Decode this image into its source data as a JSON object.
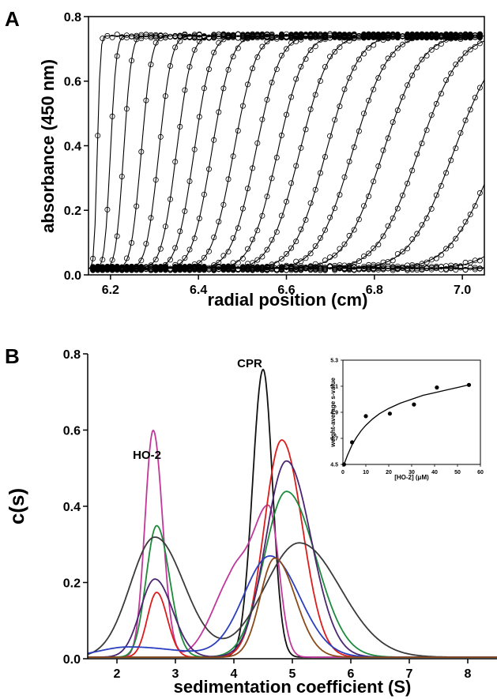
{
  "chart_data": [
    {
      "panel_label": "A",
      "type": "scatter",
      "xlabel": "radial position (cm)",
      "ylabel": "absorbance (450 nm)",
      "xlim": [
        6.15,
        7.05
      ],
      "ylim": [
        0.0,
        0.8
      ],
      "xticks": [
        "6.2",
        "6.4",
        "6.6",
        "6.8",
        "7.0"
      ],
      "yticks": [
        "0.0",
        "0.2",
        "0.4",
        "0.6",
        "0.8"
      ],
      "marker": "open-circle",
      "fit": "solid-line",
      "plateau": 0.74,
      "baseline": 0.02,
      "boundaries": [
        {
          "midpoint": 6.17,
          "width": 0.008
        },
        {
          "midpoint": 6.2,
          "width": 0.015
        },
        {
          "midpoint": 6.23,
          "width": 0.02
        },
        {
          "midpoint": 6.27,
          "width": 0.026
        },
        {
          "midpoint": 6.31,
          "width": 0.032
        },
        {
          "midpoint": 6.35,
          "width": 0.038
        },
        {
          "midpoint": 6.39,
          "width": 0.044
        },
        {
          "midpoint": 6.43,
          "width": 0.05
        },
        {
          "midpoint": 6.48,
          "width": 0.056
        },
        {
          "midpoint": 6.53,
          "width": 0.062
        },
        {
          "midpoint": 6.58,
          "width": 0.068
        },
        {
          "midpoint": 6.63,
          "width": 0.075
        },
        {
          "midpoint": 6.69,
          "width": 0.082
        },
        {
          "midpoint": 6.75,
          "width": 0.09
        },
        {
          "midpoint": 6.82,
          "width": 0.098
        },
        {
          "midpoint": 6.9,
          "width": 0.105
        },
        {
          "midpoint": 6.98,
          "width": 0.112
        },
        {
          "midpoint": 7.08,
          "width": 0.12
        },
        {
          "midpoint": 7.2,
          "width": 0.13
        },
        {
          "midpoint": 7.32,
          "width": 0.14
        },
        {
          "midpoint": 7.45,
          "width": 0.15
        }
      ]
    },
    {
      "panel_label": "B",
      "type": "line",
      "xlabel": "sedimentation coefficient (S)",
      "ylabel": "c(s)",
      "xlim": [
        1.5,
        8.5
      ],
      "ylim": [
        0.0,
        0.8
      ],
      "xticks": [
        "2",
        "3",
        "4",
        "5",
        "6",
        "7",
        "8"
      ],
      "yticks": [
        "0.0",
        "0.2",
        "0.4",
        "0.6",
        "0.8"
      ],
      "annotations": [
        "HO-2",
        "CPR"
      ],
      "series": [
        {
          "color": "#111111",
          "peaks": [
            {
              "center": 4.5,
              "height": 0.755,
              "width_left": 0.18,
              "width_right": 0.16
            }
          ]
        },
        {
          "color": "#c0389a",
          "peaks": [
            {
              "center": 2.62,
              "height": 0.595,
              "width_left": 0.14,
              "width_right": 0.16
            },
            {
              "center": 3.97,
              "height": 0.19,
              "width_left": 0.35,
              "width_right": 0.25
            },
            {
              "center": 4.6,
              "height": 0.39,
              "width_left": 0.3,
              "width_right": 0.17
            }
          ]
        },
        {
          "color": "#dd1c1c",
          "peaks": [
            {
              "center": 2.68,
              "height": 0.17,
              "width_left": 0.16,
              "width_right": 0.18
            },
            {
              "center": 4.82,
              "height": 0.57,
              "width_left": 0.3,
              "width_right": 0.35
            }
          ]
        },
        {
          "color": "#1d8a3c",
          "peaks": [
            {
              "center": 2.68,
              "height": 0.345,
              "width_left": 0.18,
              "width_right": 0.22
            },
            {
              "center": 4.9,
              "height": 0.435,
              "width_left": 0.38,
              "width_right": 0.5
            }
          ]
        },
        {
          "color": "#4b2670",
          "peaks": [
            {
              "center": 2.65,
              "height": 0.205,
              "width_left": 0.25,
              "width_right": 0.3
            },
            {
              "center": 4.9,
              "height": 0.515,
              "width_left": 0.35,
              "width_right": 0.42
            }
          ]
        },
        {
          "color": "#3a3a3a",
          "peaks": [
            {
              "center": 2.65,
              "height": 0.315,
              "width_left": 0.42,
              "width_right": 0.5
            },
            {
              "center": 5.12,
              "height": 0.3,
              "width_left": 0.6,
              "width_right": 0.7
            }
          ]
        },
        {
          "color": "#2b3fbf",
          "peaks": [
            {
              "center": 2.2,
              "height": 0.027,
              "width_left": 0.5,
              "width_right": 0.9
            },
            {
              "center": 4.62,
              "height": 0.265,
              "width_left": 0.45,
              "width_right": 0.5
            }
          ]
        },
        {
          "color": "#8a4a1a",
          "peaks": [
            {
              "center": 4.7,
              "height": 0.26,
              "width_left": 0.25,
              "width_right": 0.35
            }
          ]
        }
      ]
    },
    {
      "panel_label": "B-inset",
      "type": "scatter",
      "xlabel": "[HO-2] (μM)",
      "ylabel": "weight-average s-value",
      "xlim": [
        0,
        60
      ],
      "ylim": [
        4.5,
        5.3
      ],
      "xticks": [
        "0",
        "10",
        "20",
        "30",
        "40",
        "50",
        "60"
      ],
      "yticks": [
        "4.5",
        "4.7",
        "4.9",
        "5.1",
        "5.3"
      ],
      "points": [
        {
          "x": 0.5,
          "y": 4.5
        },
        {
          "x": 4,
          "y": 4.67
        },
        {
          "x": 10,
          "y": 4.87
        },
        {
          "x": 20.5,
          "y": 4.89
        },
        {
          "x": 31,
          "y": 4.96
        },
        {
          "x": 41,
          "y": 5.09
        },
        {
          "x": 55,
          "y": 5.11
        }
      ],
      "fit": {
        "x": [
          0.5,
          2,
          4,
          6,
          8,
          10,
          13,
          16,
          20,
          25,
          30,
          35,
          40,
          45,
          50,
          55
        ],
        "y": [
          4.5,
          4.57,
          4.65,
          4.71,
          4.76,
          4.8,
          4.85,
          4.89,
          4.93,
          4.97,
          5.0,
          5.03,
          5.05,
          5.07,
          5.09,
          5.11
        ]
      }
    }
  ]
}
